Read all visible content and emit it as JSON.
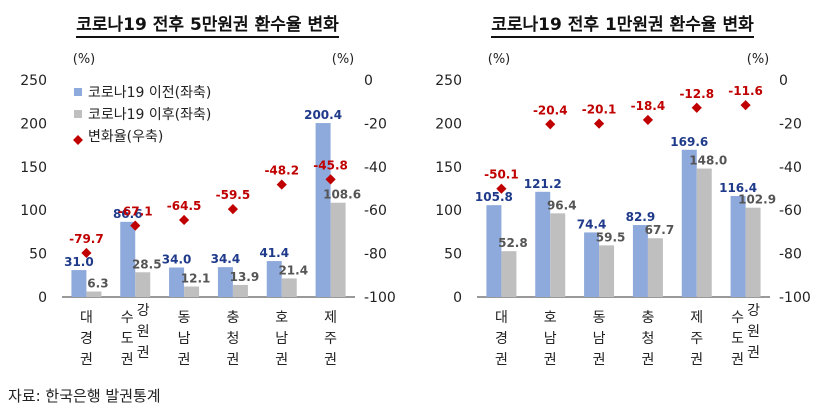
{
  "chart_data": [
    {
      "type": "bar",
      "title": "코로나19 전후 5만원권 환수율 변화",
      "categories": [
        [
          "대",
          "경",
          "권"
        ],
        [
          "수도권",
          "강원권"
        ],
        [
          "동",
          "남",
          "권"
        ],
        [
          "충",
          "청",
          "권"
        ],
        [
          "호",
          "남",
          "권"
        ],
        [
          "제",
          "주",
          "권"
        ]
      ],
      "left_unit": "(%)",
      "right_unit": "(%)",
      "ylim_left": [
        0,
        250
      ],
      "ylim_right": [
        -100,
        0
      ],
      "left_ticks": [
        "250",
        "200",
        "150",
        "100",
        "50",
        "0"
      ],
      "right_ticks": [
        "0",
        "-20",
        "-40",
        "-60",
        "-80",
        "-100"
      ],
      "series": [
        {
          "name": "코로나19 이전(좌축)",
          "values": [
            31.0,
            86.6,
            34.0,
            34.4,
            41.4,
            200.4
          ],
          "labels": [
            "31.0",
            "86.6",
            "34.0",
            "34.4",
            "41.4",
            "200.4"
          ],
          "color": "#8ea9db"
        },
        {
          "name": "코로나19 이후(좌축)",
          "values": [
            6.3,
            28.5,
            12.1,
            13.9,
            21.4,
            108.6
          ],
          "labels": [
            "6.3",
            "28.5",
            "12.1",
            "13.9",
            "21.4",
            "108.6"
          ],
          "color": "#bfbfbf"
        },
        {
          "name": "변화율(우축)",
          "values": [
            -79.7,
            -67.1,
            -64.5,
            -59.5,
            -48.2,
            -45.8
          ],
          "labels": [
            "-79.7",
            "-67.1",
            "-64.5",
            "-59.5",
            "-48.2",
            "-45.8"
          ],
          "color": "#c00000"
        }
      ],
      "legend": "top-left"
    },
    {
      "type": "bar",
      "title": "코로나19 전후 1만원권 환수율 변화",
      "categories": [
        [
          "대",
          "경",
          "권"
        ],
        [
          "호",
          "남",
          "권"
        ],
        [
          "동",
          "남",
          "권"
        ],
        [
          "충",
          "청",
          "권"
        ],
        [
          "제",
          "주",
          "권"
        ],
        [
          "수도권",
          "강원권"
        ]
      ],
      "left_unit": "(%)",
      "right_unit": "(%)",
      "ylim_left": [
        0,
        250
      ],
      "ylim_right": [
        -100,
        0
      ],
      "left_ticks": [
        "250",
        "200",
        "150",
        "100",
        "50",
        "0"
      ],
      "right_ticks": [
        "0",
        "-20",
        "-40",
        "-60",
        "-80",
        "-100"
      ],
      "series": [
        {
          "name": "코로나19 이전(좌축)",
          "values": [
            105.8,
            121.2,
            74.4,
            82.9,
            169.6,
            116.4
          ],
          "labels": [
            "105.8",
            "121.2",
            "74.4",
            "82.9",
            "169.6",
            "116.4"
          ],
          "color": "#8ea9db"
        },
        {
          "name": "코로나19 이후(좌축)",
          "values": [
            52.8,
            96.4,
            59.5,
            67.7,
            148.0,
            102.9
          ],
          "labels": [
            "52.8",
            "96.4",
            "59.5",
            "67.7",
            "148.0",
            "102.9"
          ],
          "color": "#bfbfbf"
        },
        {
          "name": "변화율(우축)",
          "values": [
            -50.1,
            -20.4,
            -20.1,
            -18.4,
            -12.8,
            -11.6
          ],
          "labels": [
            "-50.1",
            "-20.4",
            "-20.1",
            "-18.4",
            "-12.8",
            "-11.6"
          ],
          "color": "#c00000"
        }
      ]
    }
  ],
  "source": "자료: 한국은행 발권통계"
}
